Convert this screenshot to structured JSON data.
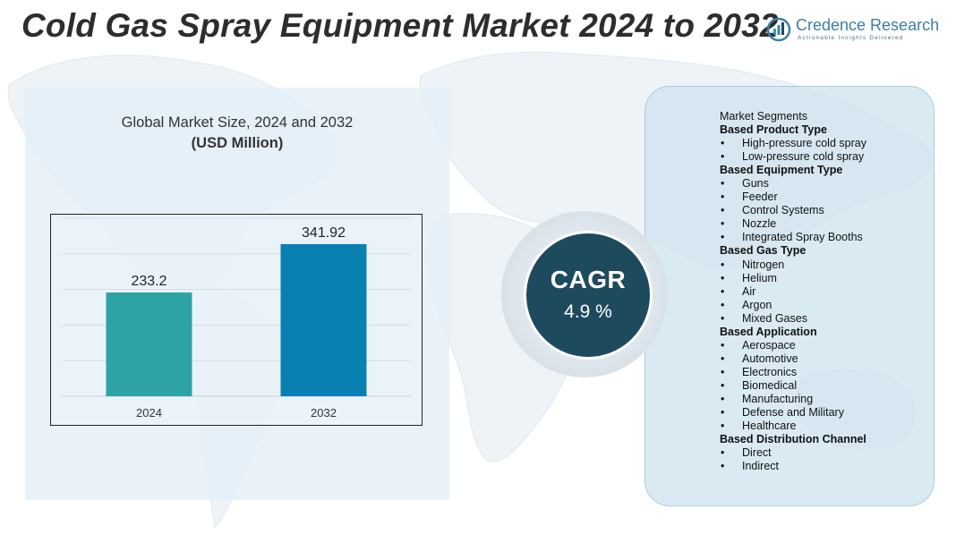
{
  "title": "Cold Gas Spray Equipment Market 2024 to 2032",
  "logo": {
    "name": "Credence Research",
    "tagline": "Actionable Insights Delivered",
    "icon": "credence-logo-icon"
  },
  "chart_panel": {
    "title_line1": "Global Market Size, 2024 and 2032",
    "title_line2": "(USD Million)"
  },
  "chart_data": {
    "type": "bar",
    "categories": [
      "2024",
      "2032"
    ],
    "values": [
      233.2,
      341.92
    ],
    "value_labels": [
      "233.2",
      "341.92"
    ],
    "colors": [
      "#2ea3a6",
      "#0a7fb1"
    ],
    "title": "Global Market Size, 2024 and 2032",
    "ylabel": "(USD Million)",
    "ylim": [
      0,
      400
    ],
    "grid": true,
    "legend": "none"
  },
  "cagr": {
    "label": "CAGR",
    "value": "4.9 %"
  },
  "segments": {
    "heading": "Market Segments",
    "groups": [
      {
        "title": "Based Product Type",
        "items": [
          "High-pressure cold spray",
          "Low-pressure cold spray"
        ]
      },
      {
        "title": "Based Equipment Type",
        "items": [
          "Guns",
          "Feeder",
          "Control Systems",
          "Nozzle",
          "Integrated Spray Booths"
        ]
      },
      {
        "title": "Based Gas Type",
        "items": [
          "Nitrogen",
          "Helium",
          "Air",
          "Argon",
          "Mixed Gases"
        ]
      },
      {
        "title": "Based Application",
        "items": [
          "Aerospace",
          "Automotive",
          "Electronics",
          "Biomedical",
          "Manufacturing",
          "Defense and Military",
          "Healthcare"
        ]
      },
      {
        "title": "Based Distribution Channel",
        "items": [
          "Direct",
          "Indirect"
        ]
      }
    ],
    "bullet": "•"
  }
}
